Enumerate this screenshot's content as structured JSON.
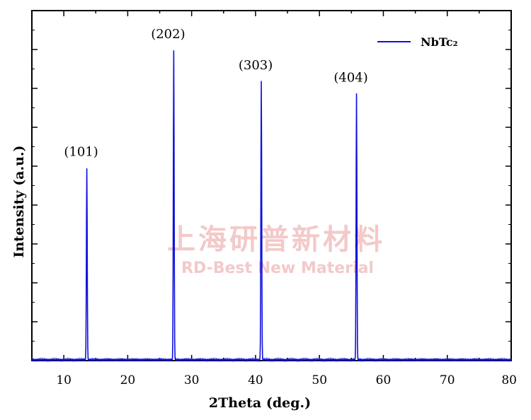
{
  "chart_data": {
    "type": "line",
    "xlabel": "2Theta (deg.)",
    "ylabel": "Intensity (a.u.)",
    "xlim": [
      5,
      80
    ],
    "ylim": [
      0,
      100
    ],
    "x_ticks": [
      10,
      20,
      30,
      40,
      50,
      60,
      70,
      80
    ],
    "y_ticks_labeled": false,
    "grid": false,
    "legend_position": "top-right",
    "series": [
      {
        "name": "NbTc₂",
        "color": "#1010dd",
        "baseline": 0.3,
        "peaks": [
          {
            "x": 13.6,
            "y": 62,
            "label": "(101)"
          },
          {
            "x": 27.2,
            "y": 100,
            "label": "(202)"
          },
          {
            "x": 40.9,
            "y": 90,
            "label": "(303)"
          },
          {
            "x": 55.8,
            "y": 86,
            "label": "(404)"
          }
        ]
      }
    ]
  },
  "watermark": {
    "line1": "上海研普新材料",
    "line2": "RD-Best New Material",
    "color": "#f3c9c9"
  }
}
